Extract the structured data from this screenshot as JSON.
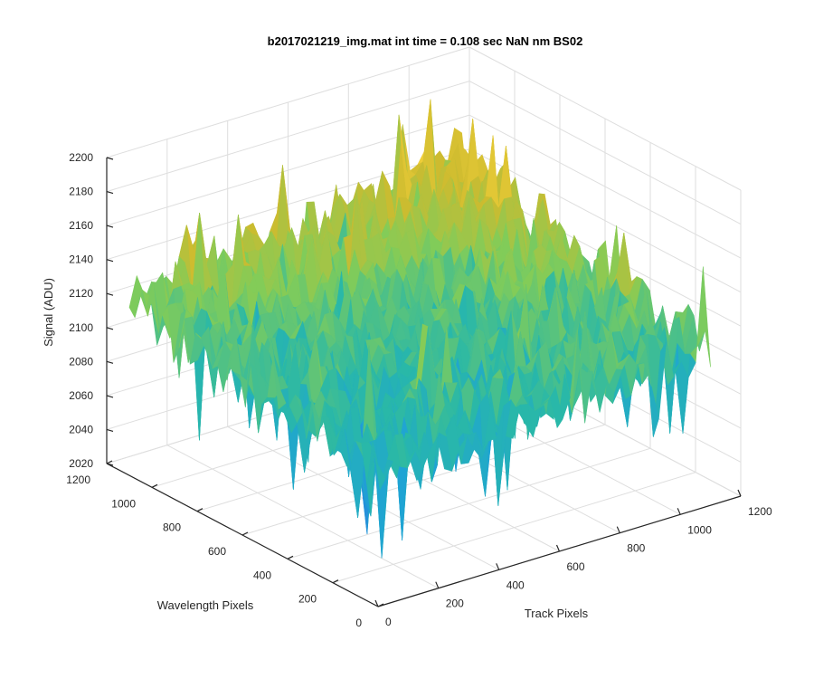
{
  "chart_data": {
    "type": "surface3d",
    "title": "b2017021219_img.mat int time = 0.108 sec  NaN nm BS02",
    "xlabel": "Track Pixels",
    "ylabel": "Wavelength Pixels",
    "zlabel": "Signal (ADU)",
    "xlim": [
      0,
      1200
    ],
    "ylim": [
      0,
      1200
    ],
    "zlim": [
      2020,
      2200
    ],
    "xticks": [
      "0",
      "200",
      "400",
      "600",
      "800",
      "1000",
      "1200"
    ],
    "yticks": [
      "0",
      "200",
      "400",
      "600",
      "800",
      "1000",
      "1200"
    ],
    "zticks": [
      "2020",
      "2040",
      "2060",
      "2080",
      "2100",
      "2120",
      "2140",
      "2160",
      "2180",
      "2200"
    ],
    "grid": true,
    "colormap": "parula",
    "surface_extent": {
      "x": [
        0,
        1100
      ],
      "y": [
        0,
        1100
      ]
    },
    "surface_mean": 2105,
    "surface_range_observed": [
      2025,
      2190
    ],
    "corner_values": {
      "x0_y0": 2098,
      "x1100_y0": 2112,
      "x0_y1100": 2125,
      "x1100_y1100": 2150,
      "center": 2110
    }
  },
  "colors": {
    "axis": "#262626",
    "grid": "#dedede",
    "colormap_stops": [
      "#3e26a8",
      "#2c7ce0",
      "#1fa4d4",
      "#29b8a8",
      "#81cc59",
      "#cdbb2f",
      "#f9d43c",
      "#f9fb0e"
    ]
  }
}
